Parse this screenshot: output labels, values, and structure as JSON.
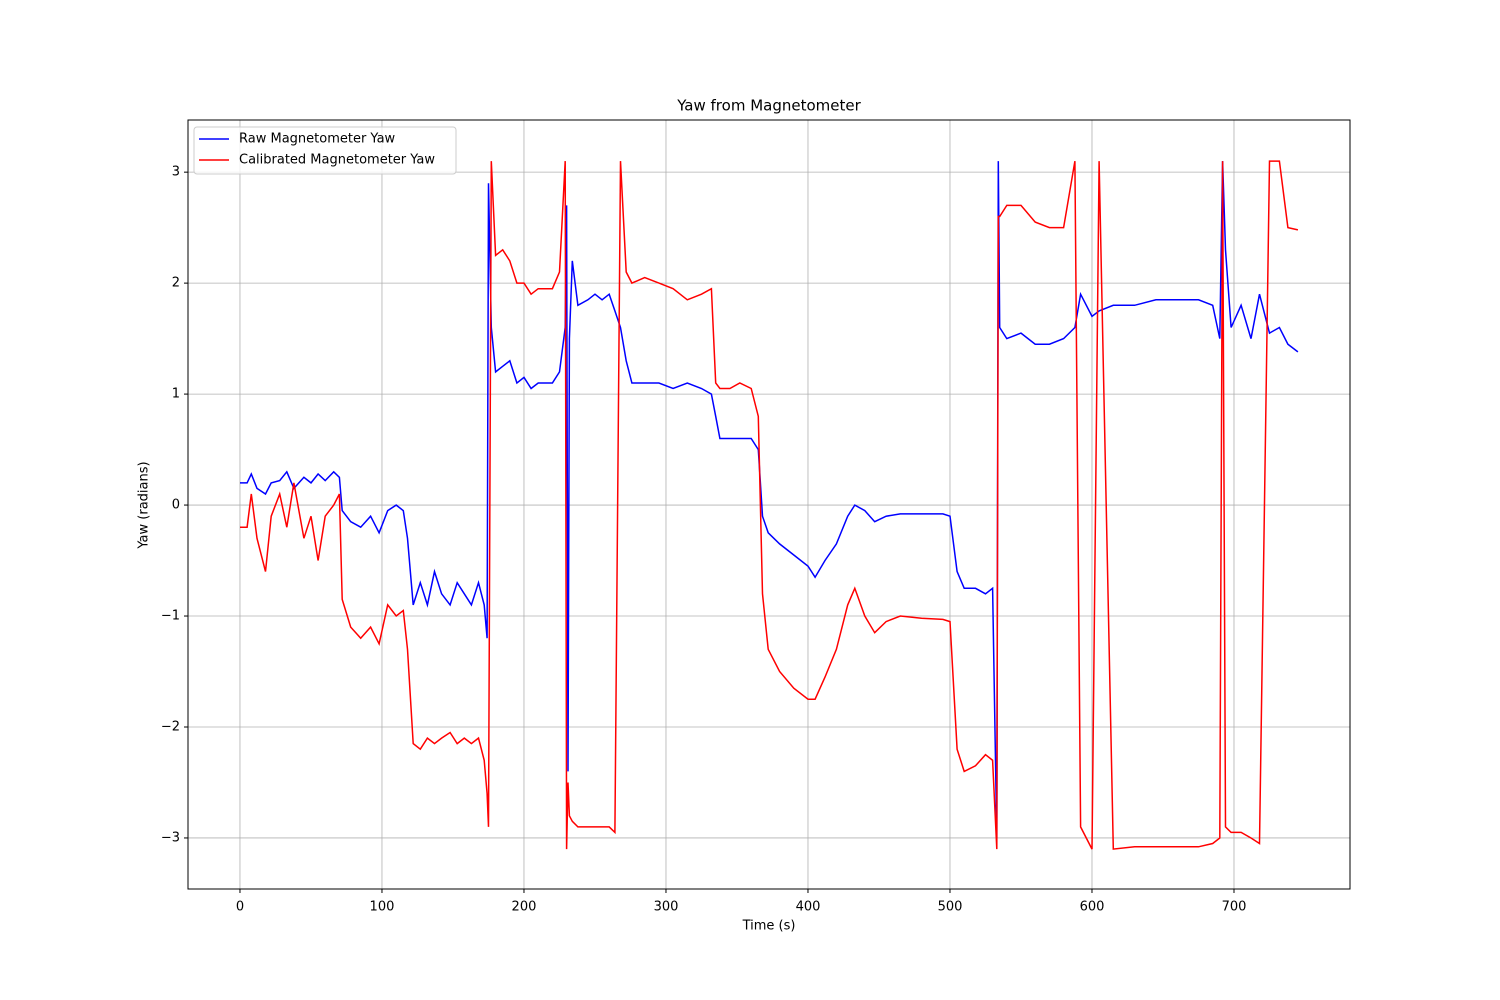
{
  "chart_data": {
    "type": "line",
    "title": "Yaw from Magnetometer",
    "x_label": "Time (s)",
    "y_label": "Yaw (radians)",
    "x": [
      0,
      5,
      8,
      12,
      18,
      22,
      28,
      33,
      38,
      45,
      50,
      55,
      60,
      66,
      70,
      72,
      78,
      85,
      92,
      98,
      104,
      110,
      115,
      118,
      122,
      127,
      132,
      137,
      142,
      148,
      153,
      158,
      163,
      168,
      172,
      174,
      175,
      177,
      180,
      185,
      190,
      195,
      200,
      205,
      210,
      215,
      220,
      225,
      229,
      230,
      231,
      232,
      234,
      238,
      245,
      250,
      255,
      260,
      264,
      268,
      272,
      276,
      285,
      295,
      305,
      315,
      325,
      332,
      335,
      338,
      345,
      352,
      360,
      365,
      368,
      372,
      380,
      390,
      400,
      405,
      412,
      420,
      428,
      433,
      440,
      447,
      455,
      465,
      480,
      495,
      500,
      505,
      510,
      518,
      525,
      530,
      533,
      534,
      535,
      540,
      550,
      560,
      570,
      580,
      588,
      592,
      600,
      605,
      615,
      630,
      645,
      660,
      675,
      685,
      690,
      692,
      694,
      698,
      705,
      712,
      718,
      725,
      732,
      738,
      745
    ],
    "series": [
      {
        "name": "Raw Magnetometer Yaw",
        "color": "#0000ff",
        "values": [
          0.2,
          0.2,
          0.28,
          0.15,
          0.1,
          0.2,
          0.22,
          0.3,
          0.15,
          0.25,
          0.2,
          0.28,
          0.22,
          0.3,
          0.25,
          -0.05,
          -0.15,
          -0.2,
          -0.1,
          -0.25,
          -0.05,
          0.0,
          -0.05,
          -0.3,
          -0.9,
          -0.7,
          -0.9,
          -0.6,
          -0.8,
          -0.9,
          -0.7,
          -0.8,
          -0.9,
          -0.7,
          -0.9,
          -1.2,
          2.9,
          1.6,
          1.2,
          1.25,
          1.3,
          1.1,
          1.15,
          1.05,
          1.1,
          1.1,
          1.1,
          1.2,
          1.6,
          2.7,
          -2.4,
          1.5,
          2.2,
          1.8,
          1.85,
          1.9,
          1.85,
          1.9,
          1.75,
          1.6,
          1.3,
          1.1,
          1.1,
          1.1,
          1.05,
          1.1,
          1.05,
          1.0,
          0.8,
          0.6,
          0.6,
          0.6,
          0.6,
          0.5,
          -0.1,
          -0.25,
          -0.35,
          -0.45,
          -0.55,
          -0.65,
          -0.5,
          -0.35,
          -0.1,
          0.0,
          -0.05,
          -0.15,
          -0.1,
          -0.08,
          -0.08,
          -0.08,
          -0.1,
          -0.6,
          -0.75,
          -0.75,
          -0.8,
          -0.75,
          -3.0,
          3.1,
          1.6,
          1.5,
          1.55,
          1.45,
          1.45,
          1.5,
          1.6,
          1.9,
          1.7,
          1.75,
          1.8,
          1.8,
          1.85,
          1.85,
          1.85,
          1.8,
          1.5,
          3.1,
          2.3,
          1.6,
          1.8,
          1.5,
          1.9,
          1.55,
          1.6,
          1.45,
          1.38
        ]
      },
      {
        "name": "Calibrated Magnetometer Yaw",
        "color": "#ff0000",
        "values": [
          -0.2,
          -0.2,
          0.1,
          -0.3,
          -0.6,
          -0.1,
          0.1,
          -0.2,
          0.2,
          -0.3,
          -0.1,
          -0.5,
          -0.1,
          0.0,
          0.1,
          -0.85,
          -1.1,
          -1.2,
          -1.1,
          -1.25,
          -0.9,
          -1.0,
          -0.95,
          -1.3,
          -2.15,
          -2.2,
          -2.1,
          -2.15,
          -2.1,
          -2.05,
          -2.15,
          -2.1,
          -2.15,
          -2.1,
          -2.3,
          -2.6,
          -2.9,
          3.1,
          2.25,
          2.3,
          2.2,
          2.0,
          2.0,
          1.9,
          1.95,
          1.95,
          1.95,
          2.1,
          3.1,
          -3.1,
          -2.5,
          -2.8,
          -2.85,
          -2.9,
          -2.9,
          -2.9,
          -2.9,
          -2.9,
          -2.95,
          3.1,
          2.1,
          2.0,
          2.05,
          2.0,
          1.95,
          1.85,
          1.9,
          1.95,
          1.1,
          1.05,
          1.05,
          1.1,
          1.05,
          0.8,
          -0.8,
          -1.3,
          -1.5,
          -1.65,
          -1.75,
          -1.75,
          -1.55,
          -1.3,
          -0.9,
          -0.75,
          -1.0,
          -1.15,
          -1.05,
          -1.0,
          -1.02,
          -1.03,
          -1.05,
          -2.2,
          -2.4,
          -2.35,
          -2.25,
          -2.3,
          -3.1,
          2.6,
          2.6,
          2.7,
          2.7,
          2.55,
          2.5,
          2.5,
          3.1,
          -2.9,
          -3.1,
          3.1,
          -3.1,
          -3.08,
          -3.08,
          -3.08,
          -3.08,
          -3.05,
          -3.0,
          3.1,
          -2.9,
          -2.95,
          -2.95,
          -3.0,
          -3.05,
          3.1,
          3.1,
          2.5,
          2.48
        ]
      }
    ],
    "xlim": [
      -36.6,
      781.7
    ],
    "ylim": [
      -3.46,
      3.47
    ],
    "xticks": [
      0,
      100,
      200,
      300,
      400,
      500,
      600,
      700
    ],
    "yticks": [
      {
        "value": -3,
        "label": "−3"
      },
      {
        "value": -2,
        "label": "−2"
      },
      {
        "value": -1,
        "label": "−1"
      },
      0,
      1,
      2,
      3
    ],
    "grid": true,
    "legend": "upper-left"
  }
}
